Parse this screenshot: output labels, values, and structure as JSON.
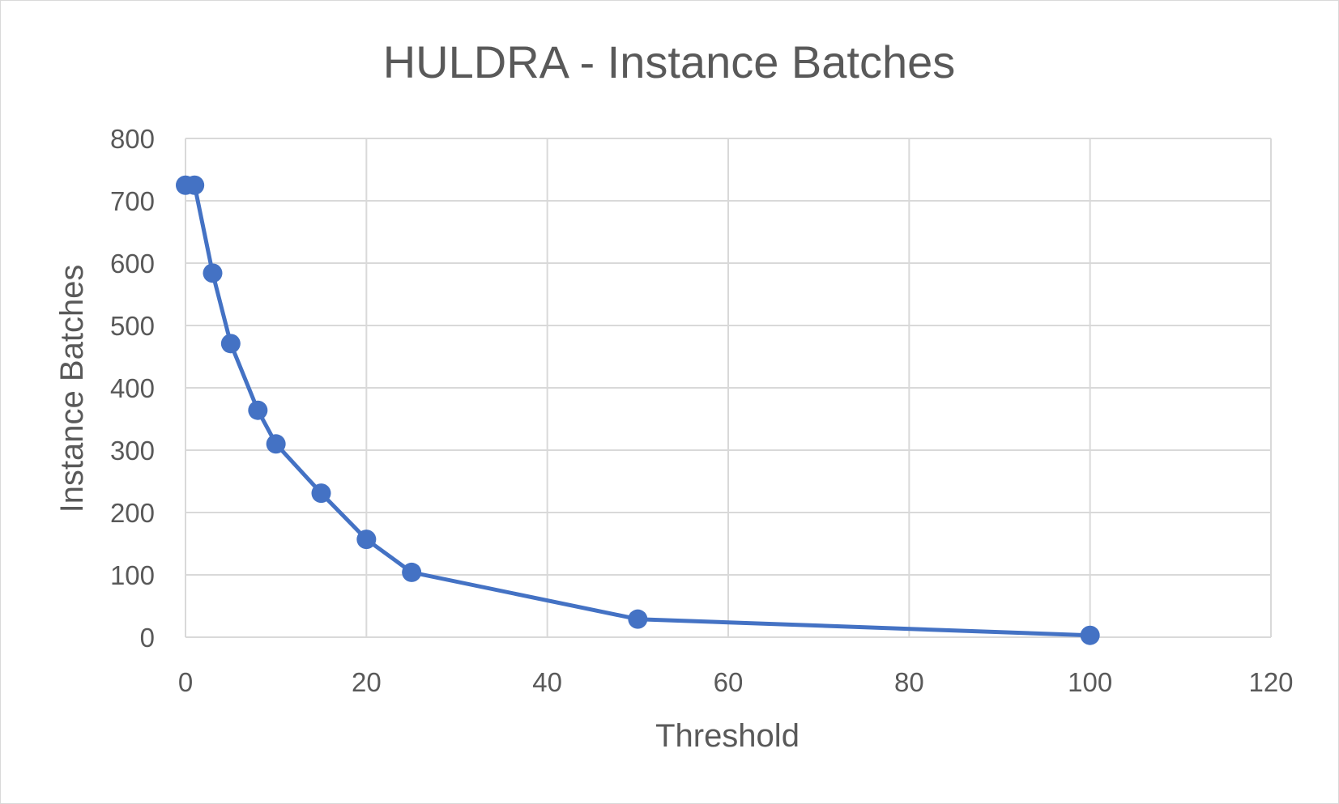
{
  "chart_data": {
    "type": "line",
    "title": "HULDRA - Instance Batches",
    "xlabel": "Threshold",
    "ylabel": "Instance Batches",
    "xlim": [
      0,
      120
    ],
    "ylim": [
      0,
      800
    ],
    "x_ticks": [
      0,
      20,
      40,
      60,
      80,
      100,
      120
    ],
    "y_ticks": [
      0,
      100,
      200,
      300,
      400,
      500,
      600,
      700,
      800
    ],
    "grid": true,
    "legend": "none",
    "series": [
      {
        "color": "#4472C4",
        "marker": "circle",
        "points": [
          {
            "x": 0,
            "y": 725
          },
          {
            "x": 1,
            "y": 725
          },
          {
            "x": 3,
            "y": 584
          },
          {
            "x": 5,
            "y": 471
          },
          {
            "x": 8,
            "y": 364
          },
          {
            "x": 10,
            "y": 310
          },
          {
            "x": 15,
            "y": 231
          },
          {
            "x": 20,
            "y": 157
          },
          {
            "x": 25,
            "y": 104
          },
          {
            "x": 50,
            "y": 29
          },
          {
            "x": 100,
            "y": 3
          }
        ]
      }
    ]
  }
}
